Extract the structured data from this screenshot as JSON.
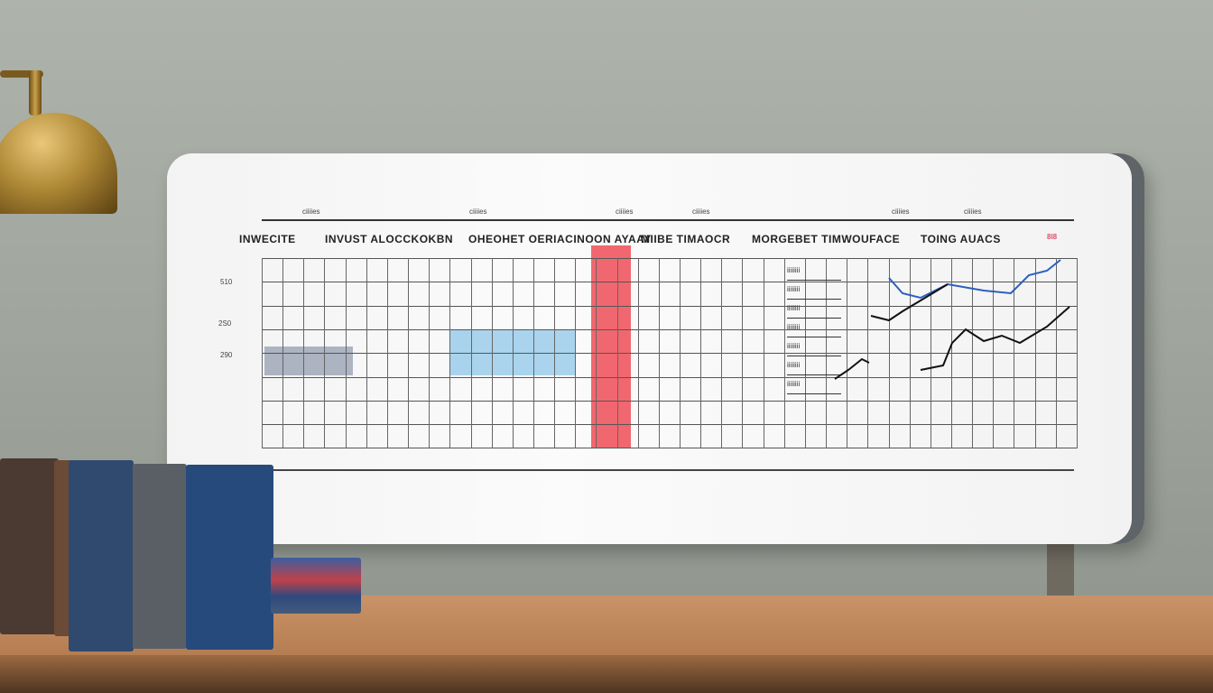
{
  "board": {
    "top_labels": [
      "ciiiies",
      "ciiiies",
      "ciiiies",
      "ciiiies",
      "ciiiies",
      "ciiiies"
    ],
    "section_titles": [
      "INWECITE",
      "INVUST ALOCCKOKBN",
      "OHEOHET OERIACINOON AYAAY",
      "MIIBE TIMAOCR",
      "MORGEBET TIMWOUFACE",
      "TOING AUACS"
    ],
    "corner_label": "8l8",
    "y_labels": [
      "510",
      "2S0",
      "290"
    ],
    "list_items": [
      "iiiiiiii",
      "iiiiiiii",
      "iiiiiiii",
      "iiiiiiii",
      "iiiiiiii",
      "iiiiiiii",
      "iiiiiiii"
    ]
  },
  "colors": {
    "wall": "#a3a8a0",
    "highlight_red": "#f0565f",
    "highlight_blue": "#5aaee0",
    "highlight_gray": "#9aa3b4",
    "desk": "#c08a5c",
    "lamp": "#b08a36"
  }
}
